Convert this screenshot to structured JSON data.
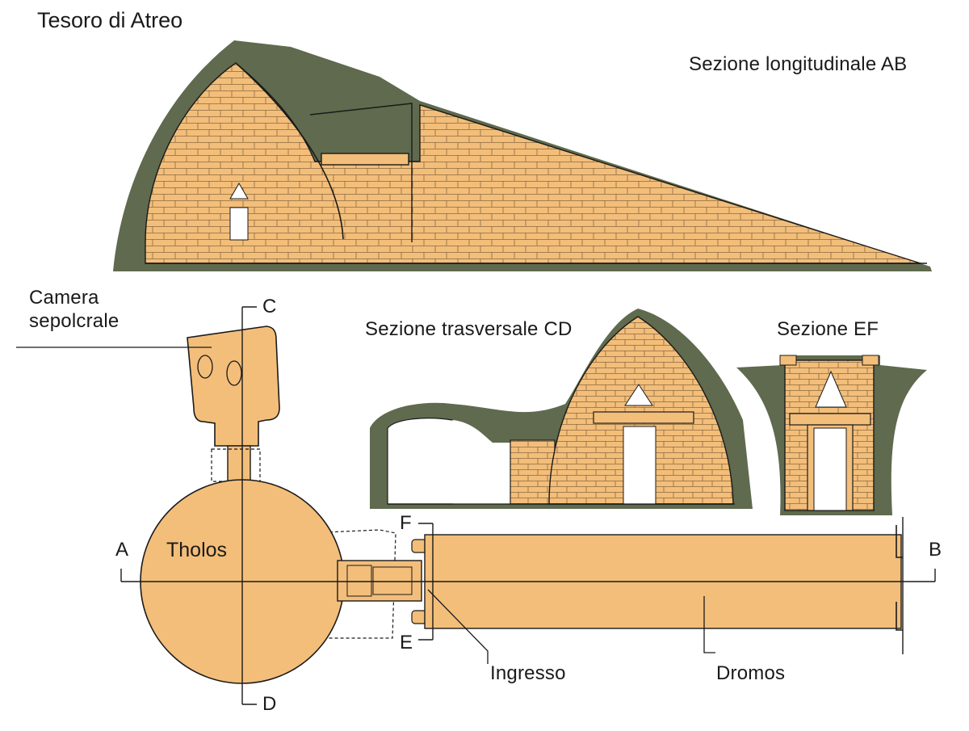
{
  "title": "Tesoro di Atreo",
  "sections": {
    "longitudinal": "Sezione longitudinale AB",
    "transversal": "Sezione trasversale CD",
    "ef": "Sezione EF"
  },
  "plan": {
    "camera_line1": "Camera",
    "camera_line2": "sepolcrale",
    "tholos": "Tholos",
    "ingresso": "Ingresso",
    "dromos": "Dromos"
  },
  "points": {
    "a": "A",
    "b": "B",
    "c": "C",
    "d": "D",
    "e": "E",
    "f": "F"
  },
  "colors": {
    "stone": "#f3be7a",
    "earth": "#5f6a4e",
    "line": "#1a1a1a",
    "paper": "#ffffff"
  }
}
